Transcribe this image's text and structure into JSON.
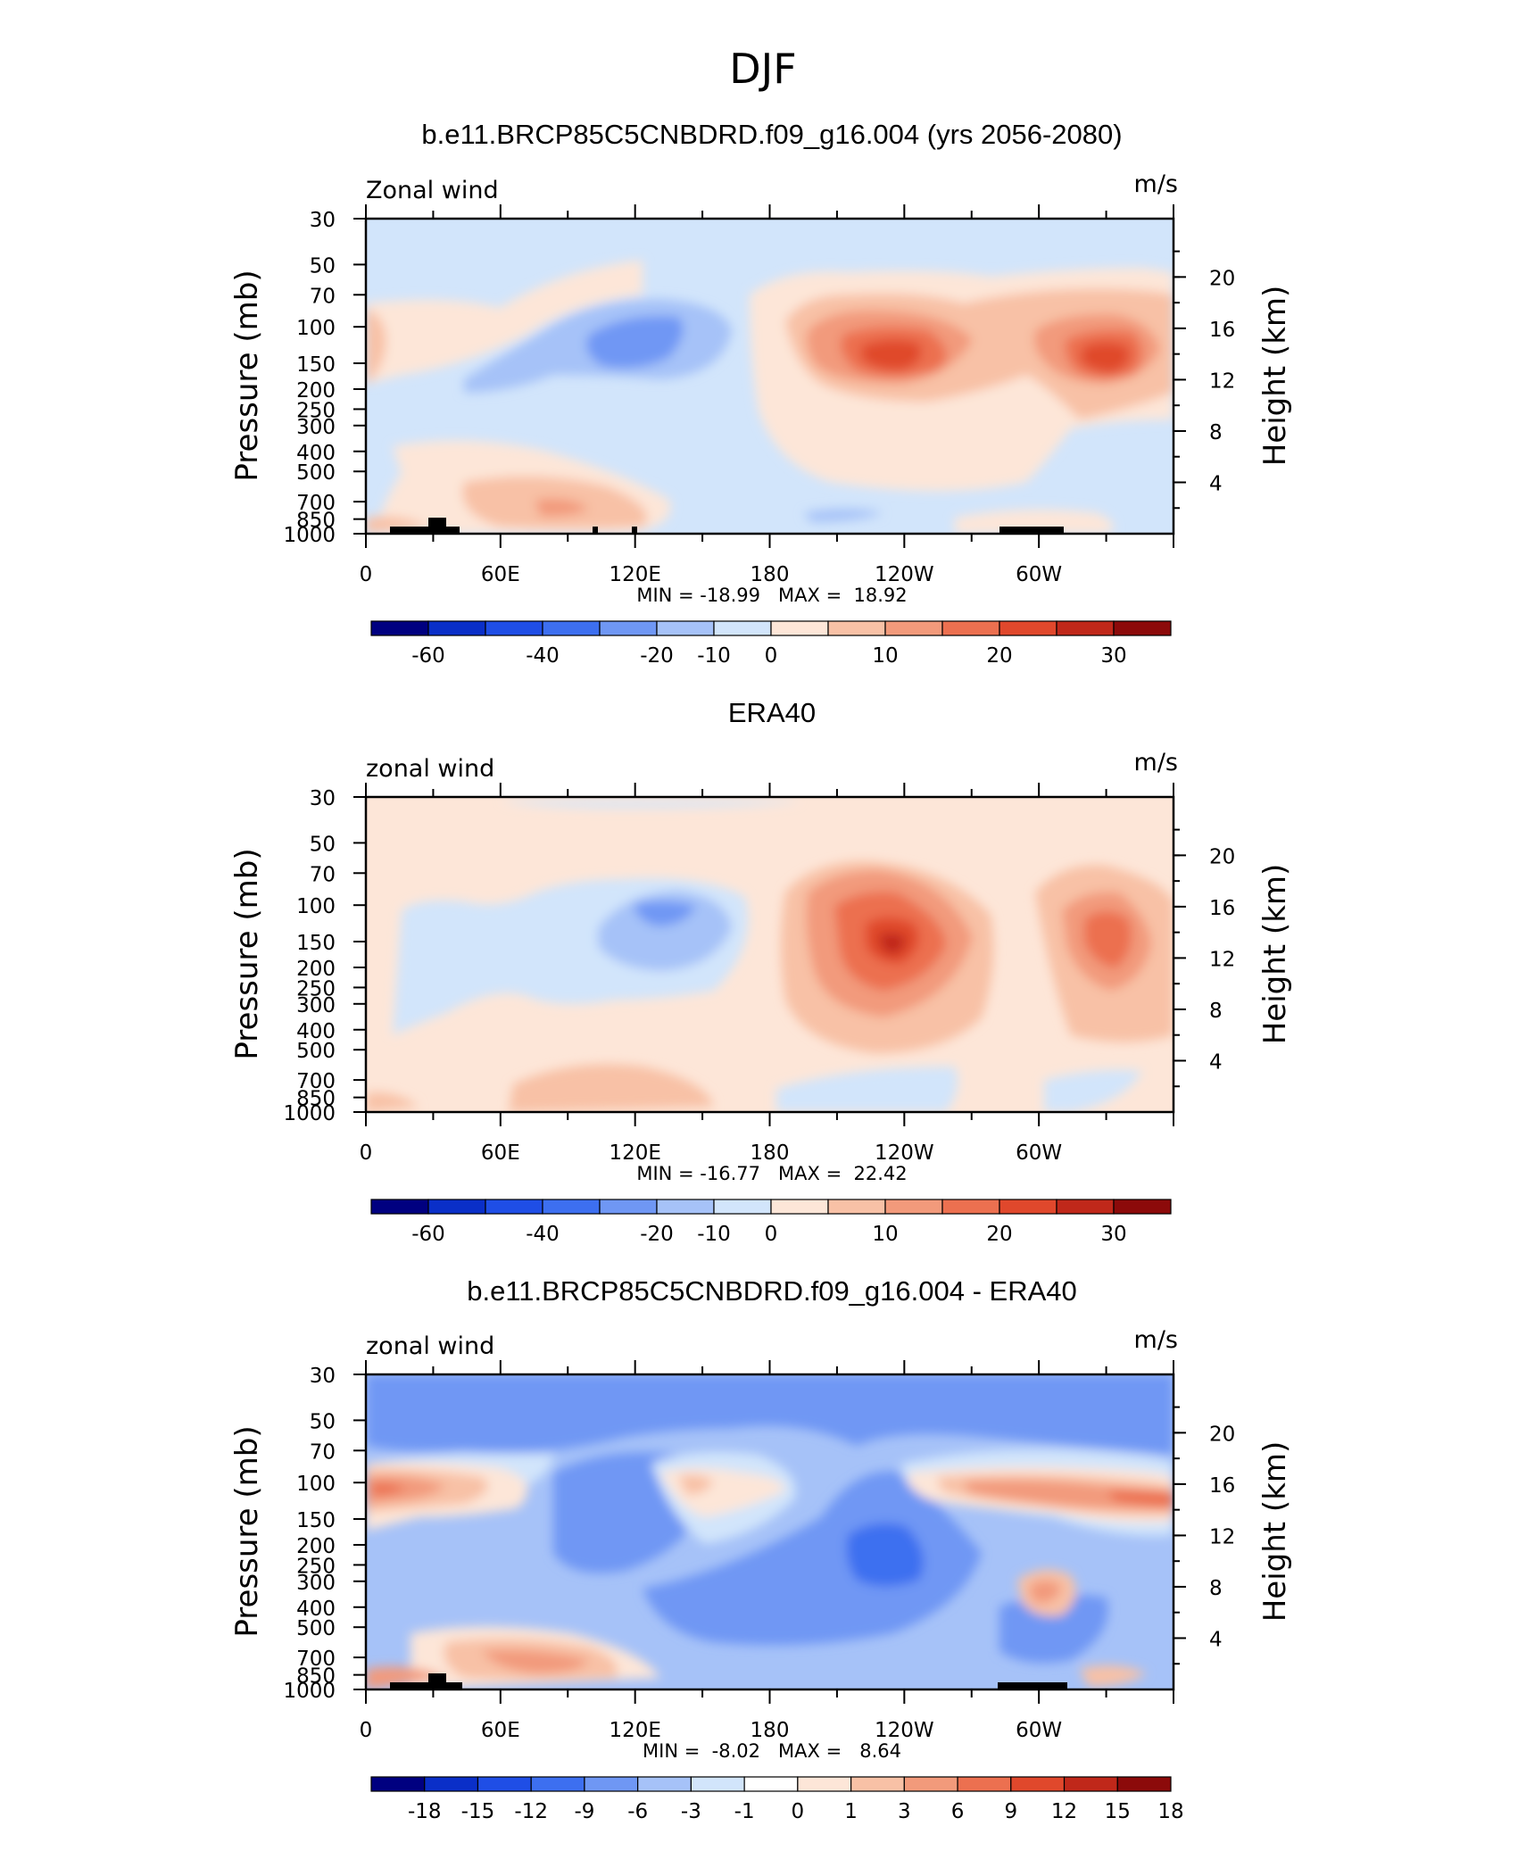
{
  "title": "DJF",
  "colors": {
    "model_levels": [
      "#000080",
      "#0a2fc8",
      "#1f4ee6",
      "#3d6ff0",
      "#6f97f4",
      "#a6c2f8",
      "#d2e5fb",
      "#fde6d8",
      "#f8c1a6",
      "#f29a7b",
      "#ec7050",
      "#e0482c",
      "#c0281a",
      "#8c0a0a"
    ],
    "diff_levels": [
      "#000080",
      "#0a2fc8",
      "#1f4ee6",
      "#3d6ff0",
      "#6f97f4",
      "#a6c2f8",
      "#d2e5fb",
      "#ffffff",
      "#fde6d8",
      "#f8c1a6",
      "#f29a7b",
      "#ec7050",
      "#e0482c",
      "#c0281a",
      "#8c0a0a"
    ]
  },
  "panels": [
    {
      "title": "b.e11.BRCP85C5CNBDRD.f09_g16.004 (yrs 2056-2080)",
      "left_label": "Zonal wind",
      "right_label": "m/s",
      "y_axis_label": "Pressure (mb)",
      "y2_axis_label": "Height (km)",
      "x_ticks": [
        "0",
        "60E",
        "120E",
        "180",
        "120W",
        "60W"
      ],
      "y_ticks": [
        "30",
        "50",
        "70",
        "100",
        "150",
        "200",
        "250",
        "300",
        "400",
        "500",
        "700",
        "850",
        "1000"
      ],
      "y2_ticks": [
        "20",
        "16",
        "12",
        "8",
        "4"
      ],
      "stats": "MIN = -18.99   MAX =  18.92",
      "colorbar_labels": [
        "-60",
        "-40",
        "-20",
        "-10",
        "0",
        "10",
        "20",
        "30"
      ]
    },
    {
      "title": "ERA40",
      "left_label": "zonal wind",
      "right_label": "m/s",
      "y_axis_label": "Pressure (mb)",
      "y2_axis_label": "Height (km)",
      "x_ticks": [
        "0",
        "60E",
        "120E",
        "180",
        "120W",
        "60W"
      ],
      "y_ticks": [
        "30",
        "50",
        "70",
        "100",
        "150",
        "200",
        "250",
        "300",
        "400",
        "500",
        "700",
        "850",
        "1000"
      ],
      "y2_ticks": [
        "20",
        "16",
        "12",
        "8",
        "4"
      ],
      "stats": "MIN = -16.77   MAX =  22.42",
      "colorbar_labels": [
        "-60",
        "-40",
        "-20",
        "-10",
        "0",
        "10",
        "20",
        "30"
      ]
    },
    {
      "title": "b.e11.BRCP85C5CNBDRD.f09_g16.004 - ERA40",
      "left_label": "zonal wind",
      "right_label": "m/s",
      "y_axis_label": "Pressure (mb)",
      "y2_axis_label": "Height (km)",
      "x_ticks": [
        "0",
        "60E",
        "120E",
        "180",
        "120W",
        "60W"
      ],
      "y_ticks": [
        "30",
        "50",
        "70",
        "100",
        "150",
        "200",
        "250",
        "300",
        "400",
        "500",
        "700",
        "850",
        "1000"
      ],
      "y2_ticks": [
        "20",
        "16",
        "12",
        "8",
        "4"
      ],
      "stats": "MIN =  -8.02   MAX =   8.64",
      "colorbar_labels": [
        "-18",
        "-15",
        "-12",
        "-9",
        "-6",
        "-3",
        "-1",
        "0",
        "1",
        "3",
        "6",
        "9",
        "12",
        "15",
        "18"
      ]
    }
  ],
  "chart_data": [
    {
      "type": "heatmap",
      "title": "b.e11.BRCP85C5CNBDRD.f09_g16.004 (yrs 2056-2080)",
      "ylabel": "Pressure (mb)",
      "y2label": "Height (km)",
      "units": "m/s",
      "variable": "Zonal wind",
      "xlim": [
        0,
        360
      ],
      "ylim": [
        1000,
        30
      ],
      "y_scale": "log",
      "min": -18.99,
      "max": 18.92,
      "contour_levels": [
        -60,
        -50,
        -40,
        -30,
        -20,
        -15,
        -10,
        -5,
        0,
        5,
        10,
        15,
        20,
        25,
        30
      ],
      "features": [
        {
          "lon": 101,
          "p": 130,
          "value": -13
        },
        {
          "lon": 238,
          "p": 150,
          "value": 18.9
        },
        {
          "lon": 320,
          "p": 140,
          "value": 17
        },
        {
          "lon": 0,
          "p": 120,
          "value": 6
        },
        {
          "lon": 90,
          "p": 700,
          "value": 7
        }
      ]
    },
    {
      "type": "heatmap",
      "title": "ERA40",
      "ylabel": "Pressure (mb)",
      "y2label": "Height (km)",
      "units": "m/s",
      "variable": "zonal wind",
      "xlim": [
        0,
        360
      ],
      "ylim": [
        1000,
        30
      ],
      "y_scale": "log",
      "min": -16.77,
      "max": 22.42,
      "contour_levels": [
        -60,
        -50,
        -40,
        -30,
        -20,
        -15,
        -10,
        -5,
        0,
        5,
        10,
        15,
        20,
        25,
        30
      ],
      "features": [
        {
          "lon": 122,
          "p": 110,
          "value": -16.8
        },
        {
          "lon": 237,
          "p": 160,
          "value": 22.4
        },
        {
          "lon": 330,
          "p": 150,
          "value": 17
        },
        {
          "lon": 85,
          "p": 750,
          "value": 6
        }
      ]
    },
    {
      "type": "heatmap",
      "title": "b.e11.BRCP85C5CNBDRD.f09_g16.004 - ERA40",
      "ylabel": "Pressure (mb)",
      "y2label": "Height (km)",
      "units": "m/s",
      "variable": "zonal wind",
      "xlim": [
        0,
        360
      ],
      "ylim": [
        1000,
        30
      ],
      "y_scale": "log",
      "min": -8.02,
      "max": 8.64,
      "contour_levels": [
        -18,
        -15,
        -12,
        -9,
        -6,
        -3,
        -1,
        0,
        1,
        3,
        6,
        9,
        12,
        15,
        18
      ],
      "features": [
        {
          "lon": 15,
          "p": 115,
          "value": 8.6
        },
        {
          "lon": 310,
          "p": 115,
          "value": 7
        },
        {
          "lon": 233,
          "p": 260,
          "value": -8
        },
        {
          "lon": 150,
          "p": 110,
          "value": 3
        },
        {
          "lon": 80,
          "p": 700,
          "value": 6
        },
        {
          "lon": 305,
          "p": 330,
          "value": 3
        }
      ]
    }
  ]
}
